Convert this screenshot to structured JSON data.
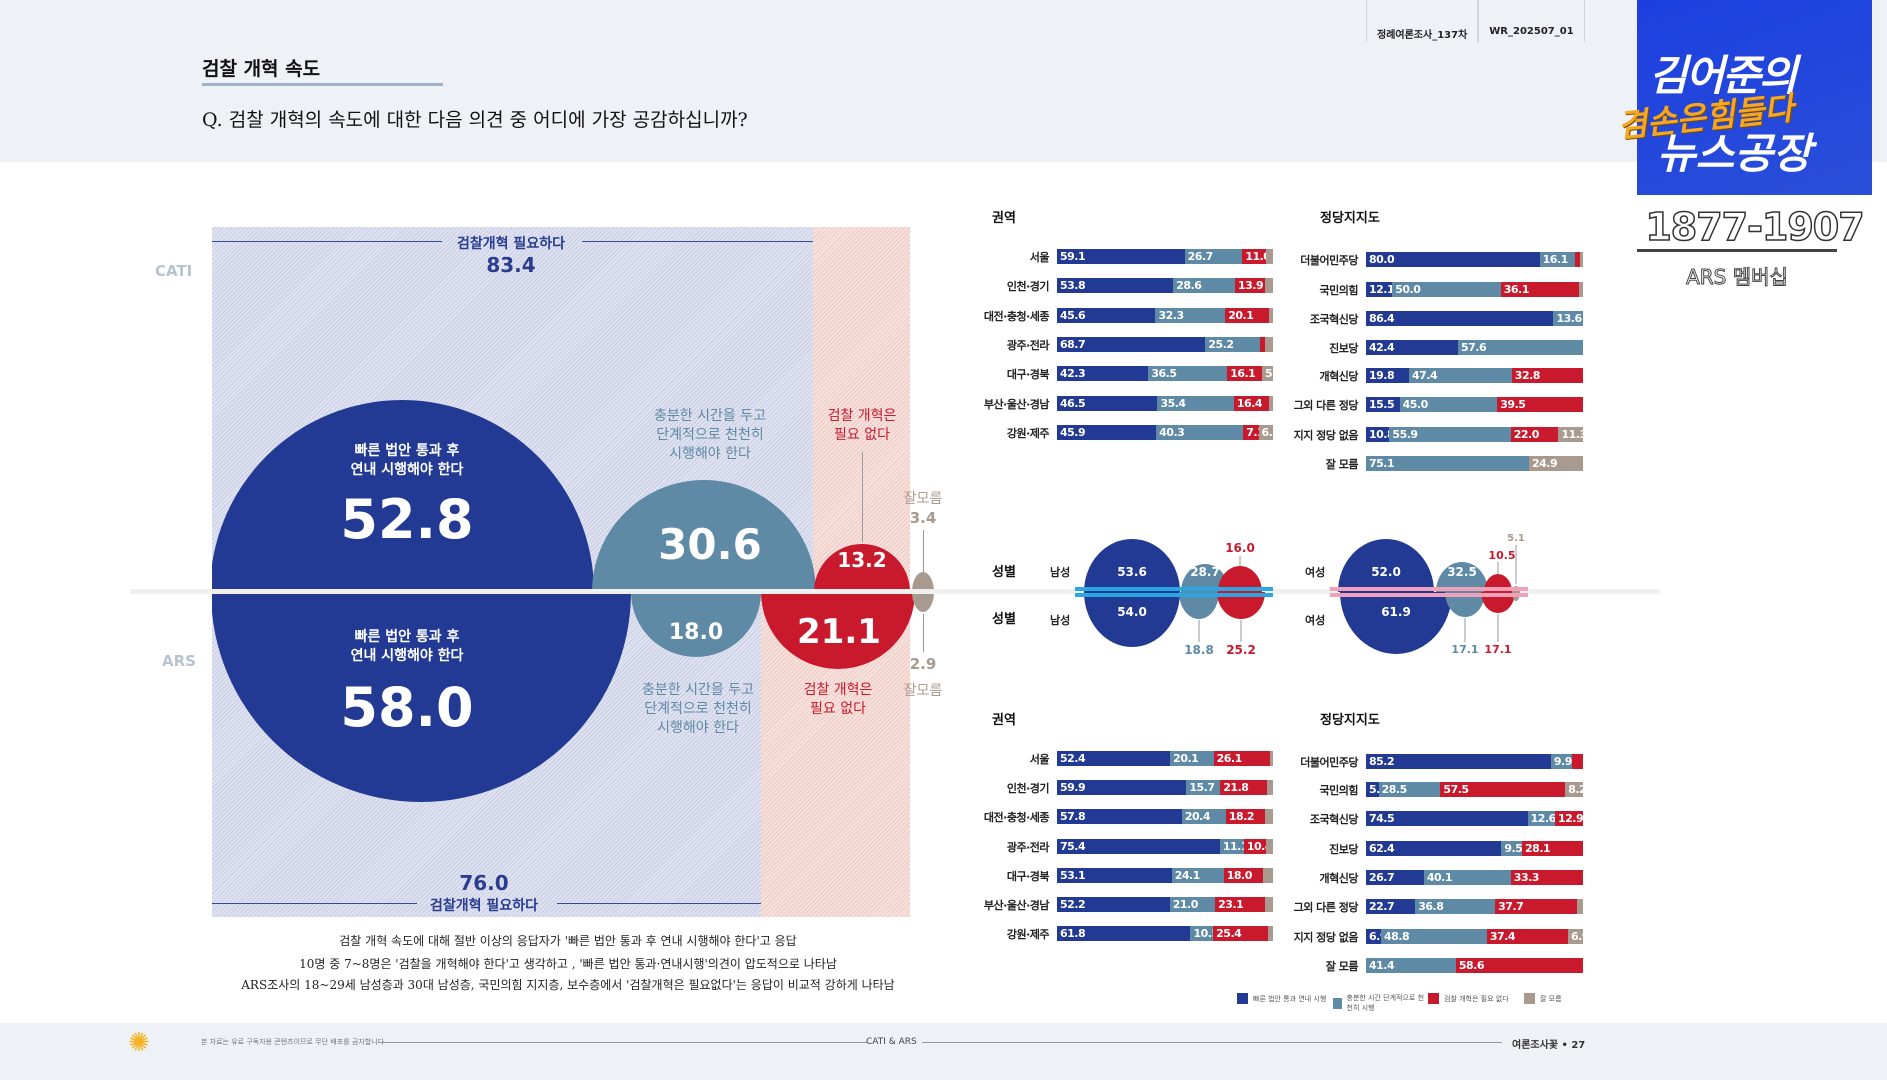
{
  "header": {
    "title": "검찰 개혁 속도",
    "question": "Q. 검찰 개혁의 속도에 대한 다음 의견 중 어디에 가장 공감하십니까?",
    "tabs": [
      "정례여론조사_137차",
      "WR_202507_01"
    ]
  },
  "logo": {
    "line1": "김어준의",
    "line2": "겸손은힘들다",
    "line3": "뉴스공장",
    "number": "1877-1907",
    "membership": "ARS 멤버십"
  },
  "colors": {
    "fast": "#233a94",
    "gradual": "#5f8aa6",
    "unneeded": "#c8192d",
    "unknown": "#a89a8e"
  },
  "chart_data": [
    {
      "type": "bubble",
      "survey": "CATI",
      "group_label": "검찰개혁 필요하다",
      "group_total": 83.4,
      "categories": [
        "빠른 법안 통과 후 연내 시행해야 한다",
        "충분한 시간을 두고 단계적으로 천천히 시행해야 한다",
        "검찰 개혁은 필요 없다",
        "잘모름"
      ],
      "values": [
        52.8,
        30.6,
        13.2,
        3.4
      ]
    },
    {
      "type": "bubble",
      "survey": "ARS",
      "group_label": "검찰개혁 필요하다",
      "group_total": 76.0,
      "categories": [
        "빠른 법안 통과 후 연내 시행해야 한다",
        "충분한 시간을 두고 단계적으로 천천히 시행해야 한다",
        "검찰 개혁은 필요 없다",
        "잘모름"
      ],
      "values": [
        58.0,
        18.0,
        21.1,
        2.9
      ]
    },
    {
      "type": "stacked-bar",
      "survey": "CATI",
      "title": "권역",
      "categories": [
        "서울",
        "인천·경기",
        "대전·충청·세종",
        "광주·전라",
        "대구·경북",
        "부산·울산·경남",
        "강원·제주"
      ],
      "rows": [
        [
          59.1,
          26.7,
          11.0,
          3.2
        ],
        [
          53.8,
          28.6,
          13.9,
          3.7
        ],
        [
          45.6,
          32.3,
          20.1,
          2.0
        ],
        [
          68.7,
          25.2,
          2.5,
          3.6
        ],
        [
          42.3,
          36.5,
          16.1,
          5.1
        ],
        [
          46.5,
          35.4,
          16.4,
          1.7
        ],
        [
          45.9,
          40.3,
          7.1,
          6.7
        ]
      ],
      "labels": [
        [
          "59.1",
          "26.7",
          "11.0",
          ""
        ],
        [
          "53.8",
          "28.6",
          "13.9",
          ""
        ],
        [
          "45.6",
          "32.3",
          "20.1",
          ""
        ],
        [
          "68.7",
          "25.2",
          "",
          ""
        ],
        [
          "42.3",
          "36.5",
          "16.1",
          "5.1"
        ],
        [
          "46.5",
          "35.4",
          "16.4",
          ""
        ],
        [
          "45.9",
          "40.3",
          "7.1",
          "6.7"
        ]
      ]
    },
    {
      "type": "stacked-bar",
      "survey": "CATI",
      "title": "정당지지도",
      "categories": [
        "더불어민주당",
        "국민의힘",
        "조국혁신당",
        "진보당",
        "개혁신당",
        "그외 다른 정당",
        "지지 정당 없음",
        "잘 모름"
      ],
      "rows": [
        [
          80.0,
          16.1,
          2.4,
          1.5
        ],
        [
          12.1,
          50.0,
          36.1,
          1.8
        ],
        [
          86.4,
          13.6,
          0,
          0
        ],
        [
          42.4,
          57.6,
          0,
          0
        ],
        [
          19.8,
          47.4,
          32.8,
          0
        ],
        [
          15.5,
          45.0,
          39.5,
          0
        ],
        [
          10.8,
          55.9,
          22.0,
          11.3
        ],
        [
          0,
          75.1,
          0,
          24.9
        ]
      ],
      "labels": [
        [
          "80.0",
          "16.1",
          "",
          ""
        ],
        [
          "12.1",
          "50.0",
          "36.1",
          ""
        ],
        [
          "86.4",
          "13.6",
          "",
          ""
        ],
        [
          "42.4",
          "57.6",
          "",
          ""
        ],
        [
          "19.8",
          "47.4",
          "32.8",
          ""
        ],
        [
          "15.5",
          "45.0",
          "39.5",
          ""
        ],
        [
          "10.8",
          "55.9",
          "22.0",
          "11.3"
        ],
        [
          "",
          "75.1",
          "",
          "24.9"
        ]
      ]
    },
    {
      "type": "bubble",
      "title": "성별",
      "groups": [
        {
          "name": "남성",
          "CATI": [
            53.6,
            28.7,
            16.0
          ],
          "ARS": [
            54.0,
            18.8,
            25.2
          ]
        },
        {
          "name": "여성",
          "CATI": [
            52.0,
            32.5,
            10.5,
            5.1
          ],
          "ARS": [
            61.9,
            17.1,
            17.1
          ]
        }
      ]
    },
    {
      "type": "stacked-bar",
      "survey": "ARS",
      "title": "권역",
      "categories": [
        "서울",
        "인천·경기",
        "대전·충청·세종",
        "광주·전라",
        "대구·경북",
        "부산·울산·경남",
        "강원·제주"
      ],
      "rows": [
        [
          52.4,
          20.1,
          26.1,
          1.4
        ],
        [
          59.9,
          15.7,
          21.8,
          2.6
        ],
        [
          57.8,
          20.4,
          18.2,
          3.6
        ],
        [
          75.4,
          11.1,
          10.4,
          3.1
        ],
        [
          53.1,
          24.1,
          18.0,
          4.8
        ],
        [
          52.2,
          21.0,
          23.1,
          3.7
        ],
        [
          61.8,
          10.5,
          25.4,
          2.3
        ]
      ],
      "labels": [
        [
          "52.4",
          "20.1",
          "26.1",
          ""
        ],
        [
          "59.9",
          "15.7",
          "21.8",
          ""
        ],
        [
          "57.8",
          "20.4",
          "18.2",
          ""
        ],
        [
          "75.4",
          "11.1",
          "10.4",
          ""
        ],
        [
          "53.1",
          "24.1",
          "18.0",
          ""
        ],
        [
          "52.2",
          "21.0",
          "23.1",
          ""
        ],
        [
          "61.8",
          "10.5",
          "25.4",
          ""
        ]
      ]
    },
    {
      "type": "stacked-bar",
      "survey": "ARS",
      "title": "정당지지도",
      "categories": [
        "더불어민주당",
        "국민의힘",
        "조국혁신당",
        "진보당",
        "개혁신당",
        "그외 다른 정당",
        "지지 정당 없음",
        "잘 모름"
      ],
      "rows": [
        [
          85.2,
          9.9,
          4.9,
          0
        ],
        [
          5.8,
          28.5,
          57.5,
          8.2
        ],
        [
          74.5,
          12.6,
          12.9,
          0
        ],
        [
          62.4,
          9.5,
          28.1,
          0
        ],
        [
          26.7,
          40.1,
          33.3,
          0
        ],
        [
          22.7,
          36.8,
          37.7,
          2.8
        ],
        [
          6.9,
          48.8,
          37.4,
          6.9
        ],
        [
          0,
          41.4,
          58.6,
          0
        ]
      ],
      "labels": [
        [
          "85.2",
          "9.9",
          "",
          ""
        ],
        [
          "5.8",
          "28.5",
          "57.5",
          "8.2"
        ],
        [
          "74.5",
          "12.6",
          "12.9",
          ""
        ],
        [
          "62.4",
          "9.5",
          "28.1",
          ""
        ],
        [
          "26.7",
          "40.1",
          "33.3",
          ""
        ],
        [
          "22.7",
          "36.8",
          "37.7",
          ""
        ],
        [
          "6.9",
          "48.8",
          "37.4",
          "6.9"
        ],
        [
          "",
          "41.4",
          "58.6",
          ""
        ]
      ]
    }
  ],
  "main": {
    "cati_label": "CATI",
    "ars_label": "ARS",
    "fast_label": [
      "빠른 법안 통과 후",
      "연내 시행해야 한다"
    ],
    "gradual_label": [
      "충분한 시간을 두고",
      "단계적으로 천천히",
      "시행해야 한다"
    ],
    "unneeded_label": [
      "검찰 개혁은",
      "필요 없다"
    ],
    "unknown_label": "잘모름"
  },
  "legend": [
    "빠른 법안 통과 연내 시행",
    "충분한 시간 단계적으로 천천히 시행",
    "검찰 개혁은 필요 없다",
    "잘 모름"
  ],
  "captions": [
    "검찰 개혁 속도에 대해 절반 이상의 응답자가 '빠른 법안 통과 후 연내 시행해야  한다'고 응답",
    "10명 중 7~8명은 '검찰을 개혁해야 한다'고 생각하고 , '빠른 법안 통과·연내시행'의견이 압도적으로 나타남",
    "ARS조사의 18~29세 남성층과 30대 남성층, 국민의힘 지지층, 보수층에서 '검찰개혁은 필요없다'는 응답이 비교적 강하게 나타남"
  ],
  "footer": {
    "notice": "본 자료는 유료 구독자용 콘텐츠이므로 무단 배포를 금지합니다",
    "center": "CATI & ARS",
    "page": "여론조사꽃 • 27",
    "logo_icon": "sunflower-icon"
  }
}
